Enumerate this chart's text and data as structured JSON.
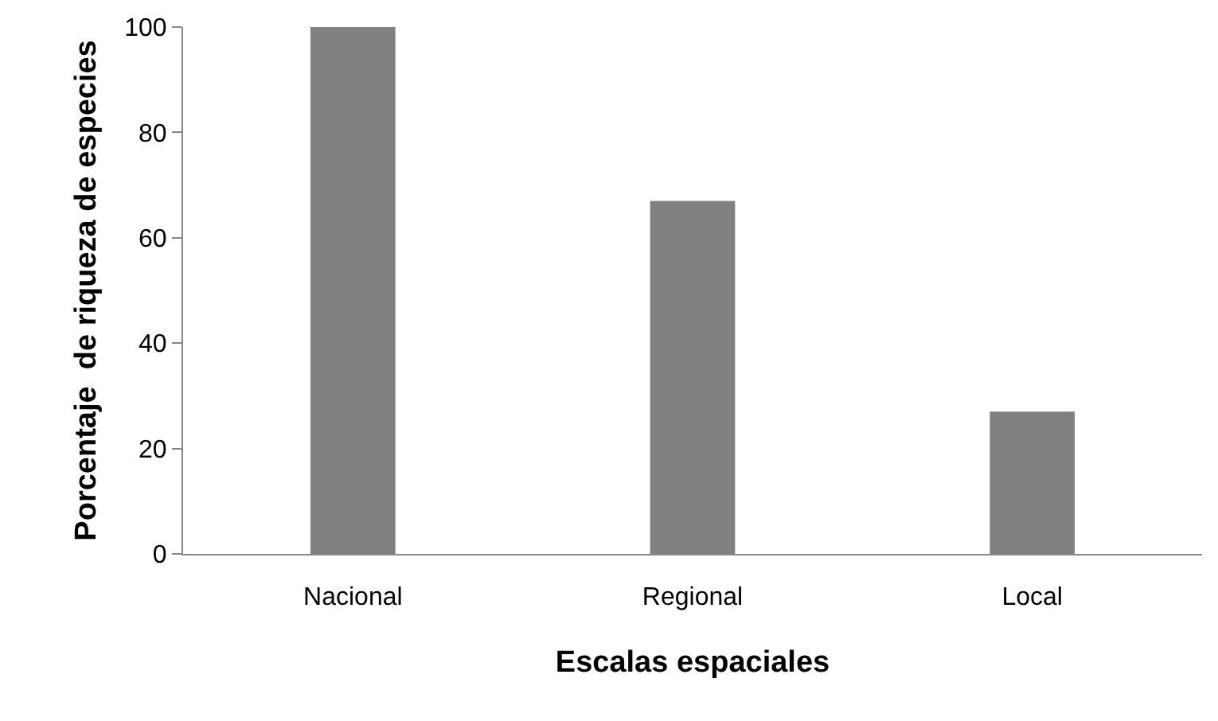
{
  "chart_data": {
    "type": "bar",
    "xlabel": "Escalas espaciales",
    "ylabel": "Porcentaje  de riqueza de especies",
    "categories": [
      "Nacional",
      "Regional",
      "Local"
    ],
    "values": [
      100,
      67,
      27
    ],
    "color": "#808080",
    "ylim": [
      0,
      100
    ],
    "yticks": [
      0,
      20,
      40,
      60,
      80,
      100
    ]
  }
}
